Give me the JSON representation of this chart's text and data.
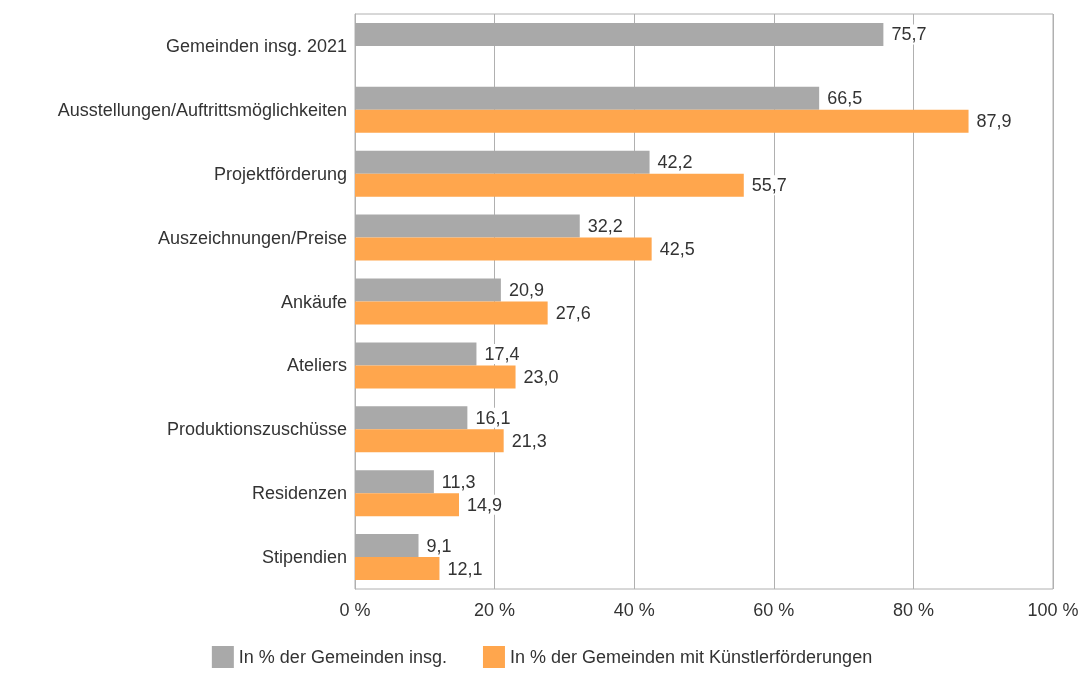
{
  "chart_data": {
    "type": "bar",
    "orientation": "horizontal",
    "categories": [
      "Gemeinden insg. 2021",
      "Ausstellungen/Auftrittsmöglichkeiten",
      "Projektförderung",
      "Auszeichnungen/Preise",
      "Ankäufe",
      "Ateliers",
      "Produktionszuschüsse",
      "Residenzen",
      "Stipendien"
    ],
    "series": [
      {
        "name": "In % der Gemeinden insg.",
        "color": "#a9a9a9",
        "values": [
          75.7,
          66.5,
          42.2,
          32.2,
          20.9,
          17.4,
          16.1,
          11.3,
          9.1
        ],
        "value_labels": [
          "75,7",
          "66,5",
          "42,2",
          "32,2",
          "20,9",
          "17,4",
          "16,1",
          "11,3",
          "9,1"
        ]
      },
      {
        "name": "In % der Gemeinden mit Künstlerförderungen",
        "color": "#ffa64d",
        "values": [
          null,
          87.9,
          55.7,
          42.5,
          27.6,
          23.0,
          21.3,
          14.9,
          12.1
        ],
        "value_labels": [
          null,
          "87,9",
          "55,7",
          "42,5",
          "27,6",
          "23,0",
          "21,3",
          "14,9",
          "12,1"
        ]
      }
    ],
    "xlim": [
      0,
      100
    ],
    "xticks": [
      {
        "value": 0,
        "label": "0 %"
      },
      {
        "value": 20,
        "label": "20 %"
      },
      {
        "value": 40,
        "label": "40 %"
      },
      {
        "value": 60,
        "label": "60 %"
      },
      {
        "value": 80,
        "label": "80 %"
      },
      {
        "value": 100,
        "label": "100 %"
      }
    ],
    "grid": "x",
    "legend": "bottom"
  }
}
